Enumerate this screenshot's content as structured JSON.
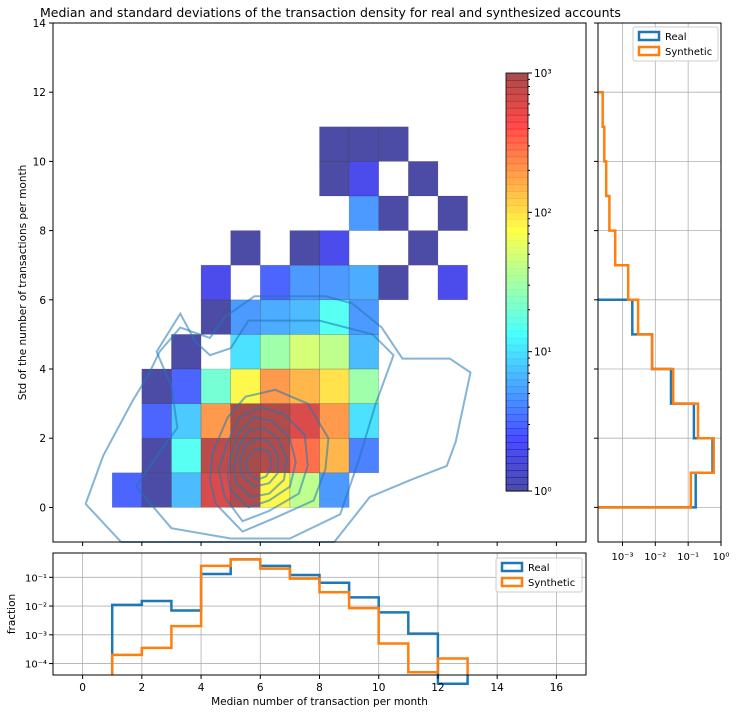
{
  "title": "Median and standard deviations of the transaction density for real and synthesized accounts",
  "colors": {
    "real": "#1f77b4",
    "synthetic": "#ff7f0e",
    "grid": "#b0b0b0"
  },
  "chart_data": [
    {
      "id": "main-heatmap",
      "type": "heatmap",
      "xlabel": "",
      "ylabel": "Std of the number of transactions per month",
      "xlim": [
        -1,
        17
      ],
      "ylim": [
        -1,
        14
      ],
      "x_ticks": [
        0,
        2,
        4,
        6,
        8,
        10,
        12,
        14,
        16
      ],
      "y_ticks": [
        0,
        2,
        4,
        6,
        8,
        10,
        12,
        14
      ],
      "bin_width": 1,
      "colormap": "jet",
      "alpha": 0.7,
      "cells": [
        {
          "x": 1,
          "y": 0,
          "count": 3
        },
        {
          "x": 2,
          "y": 0,
          "count": 1
        },
        {
          "x": 3,
          "y": 0,
          "count": 7
        },
        {
          "x": 4,
          "y": 0,
          "count": 600
        },
        {
          "x": 5,
          "y": 0,
          "count": 900
        },
        {
          "x": 6,
          "y": 0,
          "count": 80
        },
        {
          "x": 7,
          "y": 0,
          "count": 40
        },
        {
          "x": 8,
          "y": 0,
          "count": 5
        },
        {
          "x": 2,
          "y": 1,
          "count": 1
        },
        {
          "x": 3,
          "y": 1,
          "count": 15
        },
        {
          "x": 4,
          "y": 1,
          "count": 800
        },
        {
          "x": 5,
          "y": 1,
          "count": 1000
        },
        {
          "x": 6,
          "y": 1,
          "count": 900
        },
        {
          "x": 7,
          "y": 1,
          "count": 300
        },
        {
          "x": 8,
          "y": 1,
          "count": 150
        },
        {
          "x": 9,
          "y": 1,
          "count": 4
        },
        {
          "x": 2,
          "y": 2,
          "count": 3
        },
        {
          "x": 3,
          "y": 2,
          "count": 8
        },
        {
          "x": 4,
          "y": 2,
          "count": 200
        },
        {
          "x": 5,
          "y": 2,
          "count": 1000
        },
        {
          "x": 6,
          "y": 2,
          "count": 900
        },
        {
          "x": 7,
          "y": 2,
          "count": 600
        },
        {
          "x": 8,
          "y": 2,
          "count": 200
        },
        {
          "x": 9,
          "y": 2,
          "count": 10
        },
        {
          "x": 2,
          "y": 3,
          "count": 1
        },
        {
          "x": 3,
          "y": 3,
          "count": 3
        },
        {
          "x": 4,
          "y": 3,
          "count": 20
        },
        {
          "x": 5,
          "y": 3,
          "count": 80
        },
        {
          "x": 6,
          "y": 3,
          "count": 200
        },
        {
          "x": 7,
          "y": 3,
          "count": 150
        },
        {
          "x": 8,
          "y": 3,
          "count": 100
        },
        {
          "x": 9,
          "y": 3,
          "count": 30
        },
        {
          "x": 3,
          "y": 4,
          "count": 1
        },
        {
          "x": 5,
          "y": 4,
          "count": 10
        },
        {
          "x": 6,
          "y": 4,
          "count": 30
        },
        {
          "x": 7,
          "y": 4,
          "count": 50
        },
        {
          "x": 8,
          "y": 4,
          "count": 40
        },
        {
          "x": 9,
          "y": 4,
          "count": 7
        },
        {
          "x": 4,
          "y": 5,
          "count": 1
        },
        {
          "x": 5,
          "y": 5,
          "count": 5
        },
        {
          "x": 6,
          "y": 5,
          "count": 6
        },
        {
          "x": 7,
          "y": 5,
          "count": 7
        },
        {
          "x": 8,
          "y": 5,
          "count": 15
        },
        {
          "x": 9,
          "y": 5,
          "count": 5
        },
        {
          "x": 4,
          "y": 6,
          "count": 2
        },
        {
          "x": 6,
          "y": 6,
          "count": 3
        },
        {
          "x": 7,
          "y": 6,
          "count": 5
        },
        {
          "x": 8,
          "y": 6,
          "count": 5
        },
        {
          "x": 9,
          "y": 6,
          "count": 6
        },
        {
          "x": 10,
          "y": 6,
          "count": 1
        },
        {
          "x": 12,
          "y": 6,
          "count": 2
        },
        {
          "x": 5,
          "y": 7,
          "count": 1
        },
        {
          "x": 7,
          "y": 7,
          "count": 1
        },
        {
          "x": 8,
          "y": 7,
          "count": 2
        },
        {
          "x": 11,
          "y": 7,
          "count": 1
        },
        {
          "x": 9,
          "y": 8,
          "count": 5
        },
        {
          "x": 10,
          "y": 8,
          "count": 1
        },
        {
          "x": 12,
          "y": 8,
          "count": 1
        },
        {
          "x": 8,
          "y": 9,
          "count": 1
        },
        {
          "x": 9,
          "y": 9,
          "count": 2
        },
        {
          "x": 11,
          "y": 9,
          "count": 1
        },
        {
          "x": 8,
          "y": 10,
          "count": 1
        },
        {
          "x": 9,
          "y": 10,
          "count": 1
        },
        {
          "x": 10,
          "y": 10,
          "count": 1
        }
      ],
      "contours": [
        [
          [
            0.1,
            0.1
          ],
          [
            1.3,
            -1.0
          ],
          [
            4.0,
            -1.0
          ],
          [
            6.5,
            -1.0
          ],
          [
            8.5,
            -1.0
          ],
          [
            9.7,
            0.3
          ],
          [
            11.1,
            0.8
          ],
          [
            12.3,
            1.2
          ],
          [
            12.6,
            1.9
          ],
          [
            13.1,
            3.9
          ],
          [
            12.4,
            4.3
          ],
          [
            11.5,
            4.3
          ],
          [
            10.8,
            4.3
          ],
          [
            10.1,
            5.2
          ],
          [
            9.1,
            5.9
          ],
          [
            8.2,
            6.1
          ],
          [
            7.0,
            6.1
          ],
          [
            5.8,
            6.1
          ],
          [
            4.8,
            5.5
          ],
          [
            4.3,
            4.9
          ],
          [
            3.3,
            5.2
          ],
          [
            2.6,
            4.5
          ],
          [
            2.2,
            3.8
          ],
          [
            1.7,
            3.1
          ],
          [
            0.7,
            1.5
          ],
          [
            0.1,
            0.1
          ]
        ],
        [
          [
            1.8,
            0.6
          ],
          [
            3.0,
            -0.6
          ],
          [
            5.0,
            -0.9
          ],
          [
            7.0,
            -0.9
          ],
          [
            8.7,
            -0.2
          ],
          [
            9.3,
            1.3
          ],
          [
            9.9,
            3.0
          ],
          [
            10.5,
            4.4
          ],
          [
            9.8,
            5.0
          ],
          [
            8.0,
            5.4
          ],
          [
            5.6,
            5.4
          ],
          [
            5.0,
            4.6
          ],
          [
            4.3,
            4.4
          ],
          [
            3.8,
            4.8
          ],
          [
            3.3,
            5.6
          ],
          [
            2.5,
            4.5
          ],
          [
            3.0,
            3.5
          ],
          [
            3.2,
            2.3
          ],
          [
            2.6,
            1.6
          ],
          [
            1.8,
            0.6
          ]
        ],
        [
          [
            4.5,
            0.1
          ],
          [
            5.4,
            -0.7
          ],
          [
            6.5,
            -0.3
          ],
          [
            7.8,
            0.2
          ],
          [
            8.2,
            1.1
          ],
          [
            8.3,
            2.0
          ],
          [
            7.6,
            3.0
          ],
          [
            6.5,
            3.4
          ],
          [
            5.5,
            3.2
          ],
          [
            4.9,
            2.6
          ],
          [
            4.4,
            1.6
          ],
          [
            4.3,
            0.8
          ],
          [
            4.5,
            0.1
          ]
        ],
        [
          [
            4.8,
            0.3
          ],
          [
            5.4,
            -0.4
          ],
          [
            6.3,
            -0.1
          ],
          [
            7.3,
            0.4
          ],
          [
            7.6,
            1.2
          ],
          [
            7.5,
            2.1
          ],
          [
            6.8,
            2.7
          ],
          [
            6.0,
            2.9
          ],
          [
            5.3,
            2.6
          ],
          [
            4.9,
            1.9
          ],
          [
            4.6,
            1.1
          ],
          [
            4.8,
            0.3
          ]
        ],
        [
          [
            5.0,
            0.5
          ],
          [
            5.6,
            0.0
          ],
          [
            6.3,
            0.2
          ],
          [
            7.0,
            0.6
          ],
          [
            7.2,
            1.3
          ],
          [
            7.0,
            2.0
          ],
          [
            6.4,
            2.5
          ],
          [
            5.8,
            2.6
          ],
          [
            5.3,
            2.2
          ],
          [
            5.0,
            1.5
          ],
          [
            4.9,
            0.9
          ],
          [
            5.0,
            0.5
          ]
        ],
        [
          [
            5.2,
            0.7
          ],
          [
            5.7,
            0.3
          ],
          [
            6.3,
            0.4
          ],
          [
            6.8,
            0.8
          ],
          [
            6.9,
            1.4
          ],
          [
            6.6,
            2.0
          ],
          [
            6.1,
            2.3
          ],
          [
            5.6,
            2.2
          ],
          [
            5.3,
            1.8
          ],
          [
            5.1,
            1.2
          ],
          [
            5.2,
            0.7
          ]
        ],
        [
          [
            5.4,
            0.9
          ],
          [
            5.8,
            0.6
          ],
          [
            6.3,
            0.7
          ],
          [
            6.6,
            1.0
          ],
          [
            6.6,
            1.5
          ],
          [
            6.3,
            1.9
          ],
          [
            5.9,
            2.0
          ],
          [
            5.5,
            1.8
          ],
          [
            5.3,
            1.3
          ],
          [
            5.4,
            0.9
          ]
        ],
        [
          [
            5.6,
            1.0
          ],
          [
            5.9,
            0.8
          ],
          [
            6.2,
            0.9
          ],
          [
            6.4,
            1.2
          ],
          [
            6.3,
            1.6
          ],
          [
            6.0,
            1.7
          ],
          [
            5.7,
            1.6
          ],
          [
            5.5,
            1.3
          ],
          [
            5.6,
            1.0
          ]
        ]
      ]
    },
    {
      "id": "colorbar",
      "type": "heatmap",
      "scale": "log",
      "range": [
        1,
        1000
      ],
      "ticks": [
        {
          "value": 1000,
          "label": "10³"
        },
        {
          "value": 100,
          "label": "10²"
        },
        {
          "value": 10,
          "label": "10¹"
        },
        {
          "value": 1,
          "label": "10⁰"
        }
      ]
    },
    {
      "id": "bottom-hist",
      "type": "line",
      "xlabel": "Median number of transaction per month",
      "ylabel": "fraction",
      "xlim": [
        -1,
        17
      ],
      "yscale": "log",
      "ylim": [
        4e-05,
        0.7
      ],
      "x_ticks": [
        0,
        2,
        4,
        6,
        8,
        10,
        12,
        14,
        16
      ],
      "y_ticks": [
        {
          "value": 0.1,
          "label": "10⁻¹"
        },
        {
          "value": 0.01,
          "label": "10⁻²"
        },
        {
          "value": 0.001,
          "label": "10⁻³"
        },
        {
          "value": 0.0001,
          "label": "10⁻⁴"
        }
      ],
      "grid": true,
      "legend": "top-right",
      "bin_edges": [
        1,
        2,
        3,
        4,
        5,
        6,
        7,
        8,
        9,
        10,
        11,
        12,
        13
      ],
      "series": [
        {
          "name": "Real",
          "values": [
            0.011,
            0.015,
            0.007,
            0.13,
            0.42,
            0.25,
            0.12,
            0.065,
            0.02,
            0.006,
            0.0011,
            2e-05
          ]
        },
        {
          "name": "Synthetic",
          "values": [
            0.0002,
            0.00035,
            0.002,
            0.25,
            0.42,
            0.2,
            0.09,
            0.03,
            0.0085,
            0.0005,
            5e-05,
            0.00015
          ]
        }
      ]
    },
    {
      "id": "right-hist",
      "type": "line",
      "orientation": "horizontal",
      "xscale": "log",
      "xlim": [
        0.00018,
        1
      ],
      "ylim": [
        -1,
        14
      ],
      "x_ticks": [
        {
          "value": 0.001,
          "label": "10⁻³"
        },
        {
          "value": 0.01,
          "label": "10⁻²"
        },
        {
          "value": 0.1,
          "label": "10⁻¹"
        },
        {
          "value": 1,
          "label": "10⁰"
        }
      ],
      "grid": true,
      "legend": "top-right",
      "bin_edges": [
        0,
        1,
        2,
        3,
        4,
        5,
        6,
        7,
        8,
        9,
        10,
        11,
        12
      ],
      "series": [
        {
          "name": "Real",
          "values": [
            0.17,
            0.55,
            0.15,
            0.03,
            0.008,
            0.002
          ]
        },
        {
          "name": "Synthetic",
          "values": [
            0.12,
            0.6,
            0.2,
            0.035,
            0.008,
            0.003,
            0.0015,
            0.0006,
            0.0004,
            0.00032,
            0.00028,
            0.00025
          ]
        }
      ]
    }
  ]
}
